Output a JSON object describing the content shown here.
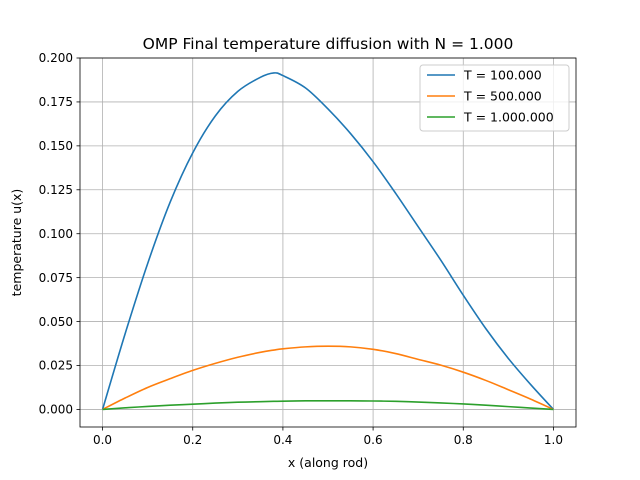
{
  "chart_data": {
    "type": "line",
    "title": "OMP Final temperature diffusion with N = 1.000",
    "xlabel": "x (along rod)",
    "ylabel": "temperature u(x)",
    "xlim": [
      -0.05,
      1.05
    ],
    "ylim": [
      -0.01,
      0.2
    ],
    "xticks": [
      0.0,
      0.2,
      0.4,
      0.6,
      0.8,
      1.0
    ],
    "xtick_labels": [
      "0.0",
      "0.2",
      "0.4",
      "0.6",
      "0.8",
      "1.0"
    ],
    "yticks": [
      0.0,
      0.025,
      0.05,
      0.075,
      0.1,
      0.125,
      0.15,
      0.175,
      0.2
    ],
    "ytick_labels": [
      "0.000",
      "0.025",
      "0.050",
      "0.075",
      "0.100",
      "0.125",
      "0.150",
      "0.175",
      "0.200"
    ],
    "grid": true,
    "legend_position": "top-right",
    "x": [
      0.0,
      0.05,
      0.1,
      0.15,
      0.2,
      0.25,
      0.3,
      0.35,
      0.38,
      0.4,
      0.45,
      0.5,
      0.55,
      0.6,
      0.65,
      0.7,
      0.75,
      0.8,
      0.85,
      0.9,
      0.95,
      1.0
    ],
    "series": [
      {
        "name": "T = 100.000",
        "color": "#1f77b4",
        "values": [
          0.0,
          0.043,
          0.083,
          0.118,
          0.146,
          0.167,
          0.181,
          0.189,
          0.1915,
          0.19,
          0.183,
          0.171,
          0.157,
          0.141,
          0.123,
          0.104,
          0.085,
          0.065,
          0.046,
          0.029,
          0.014,
          0.0
        ]
      },
      {
        "name": "T = 500.000",
        "color": "#ff7f0e",
        "values": [
          0.0,
          0.0065,
          0.0125,
          0.0175,
          0.0222,
          0.0262,
          0.0297,
          0.0325,
          0.0338,
          0.0345,
          0.0356,
          0.036,
          0.0356,
          0.0342,
          0.0318,
          0.0285,
          0.0252,
          0.0212,
          0.0165,
          0.0112,
          0.0058,
          0.0
        ]
      },
      {
        "name": "T = 1.000.000",
        "color": "#2ca02c",
        "values": [
          0.0,
          0.0009,
          0.0017,
          0.0024,
          0.003,
          0.0036,
          0.0041,
          0.0044,
          0.0046,
          0.0047,
          0.0049,
          0.0049,
          0.0049,
          0.0048,
          0.0046,
          0.0042,
          0.0037,
          0.0031,
          0.0024,
          0.0016,
          0.0008,
          0.0
        ]
      }
    ]
  }
}
